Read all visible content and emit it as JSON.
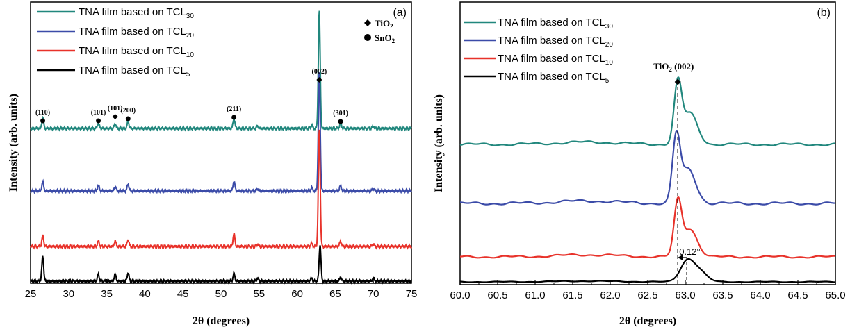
{
  "chart_data": [
    {
      "panel_label": "(a)",
      "type": "line",
      "xlabel": "2θ (degrees)",
      "ylabel": "Intensity (arb. units)",
      "xlim": [
        25,
        75
      ],
      "xticks": [
        "25",
        "30",
        "35",
        "40",
        "45",
        "50",
        "55",
        "60",
        "65",
        "70",
        "75"
      ],
      "legend_position": "top-left",
      "series": [
        {
          "name": "TNA film based on TCL",
          "sub": "30",
          "color": "#21877d",
          "offset": 3,
          "peaks": [
            [
              26.6,
              0.15
            ],
            [
              33.9,
              0.07
            ],
            [
              36.1,
              0.06
            ],
            [
              37.8,
              0.09
            ],
            [
              51.7,
              0.13
            ],
            [
              54.8,
              0.03
            ],
            [
              61.9,
              0.04
            ],
            [
              62.9,
              1.55
            ],
            [
              65.7,
              0.07
            ],
            [
              70.0,
              0.03
            ]
          ]
        },
        {
          "name": "TNA film based on TCL",
          "sub": "20",
          "color": "#3b4ba8",
          "offset": 2,
          "peaks": [
            [
              26.6,
              0.12
            ],
            [
              33.9,
              0.07
            ],
            [
              36.1,
              0.06
            ],
            [
              37.8,
              0.09
            ],
            [
              51.7,
              0.13
            ],
            [
              54.8,
              0.03
            ],
            [
              61.9,
              0.04
            ],
            [
              62.9,
              1.58
            ],
            [
              65.7,
              0.07
            ],
            [
              70.0,
              0.03
            ]
          ]
        },
        {
          "name": "TNA film based on TCL",
          "sub": "10",
          "color": "#e8322a",
          "offset": 1,
          "peaks": [
            [
              26.6,
              0.14
            ],
            [
              33.9,
              0.07
            ],
            [
              36.1,
              0.07
            ],
            [
              37.8,
              0.09
            ],
            [
              51.7,
              0.17
            ],
            [
              54.8,
              0.03
            ],
            [
              61.9,
              0.04
            ],
            [
              62.9,
              1.54
            ],
            [
              65.7,
              0.07
            ],
            [
              70.0,
              0.03
            ]
          ]
        },
        {
          "name": "TNA film based on TCL",
          "sub": "5",
          "color": "#000000",
          "offset": 0,
          "peaks": [
            [
              26.6,
              0.33
            ],
            [
              33.9,
              0.09
            ],
            [
              36.1,
              0.09
            ],
            [
              37.8,
              0.11
            ],
            [
              51.7,
              0.1
            ],
            [
              54.8,
              0.04
            ],
            [
              61.9,
              0.04
            ],
            [
              63.0,
              0.48
            ],
            [
              65.7,
              0.05
            ],
            [
              70.0,
              0.04
            ]
          ]
        }
      ],
      "peak_labels": [
        {
          "text": "(110)",
          "x": 26.6,
          "marker": "circle"
        },
        {
          "text": "(101)",
          "x": 33.9,
          "marker": "circle"
        },
        {
          "text": "(101)",
          "x": 36.1,
          "marker": "diamond"
        },
        {
          "text": "(200)",
          "x": 37.8,
          "marker": "circle"
        },
        {
          "text": "(211)",
          "x": 51.7,
          "marker": "circle"
        },
        {
          "text": "(002)",
          "x": 62.9,
          "marker": "diamond"
        },
        {
          "text": "(301)",
          "x": 65.7,
          "marker": "circle"
        }
      ],
      "marker_key": [
        {
          "marker": "diamond",
          "label": "TiO",
          "sub": "2"
        },
        {
          "marker": "circle",
          "label": "SnO",
          "sub": "2"
        }
      ]
    },
    {
      "panel_label": "(b)",
      "type": "line",
      "xlabel": "2θ (degrees)",
      "ylabel": "Intensity (arb. units)",
      "xlim": [
        60.0,
        65.0
      ],
      "xticks": [
        "60.0",
        "60.5",
        "61.0",
        "61.5",
        "62.0",
        "62.5",
        "63.0",
        "63.5",
        "64.0",
        "64.5",
        "65.0"
      ],
      "legend_position": "top-left",
      "series": [
        {
          "name": "TNA film based on TCL",
          "sub": "30",
          "color": "#21877d",
          "offset": 3,
          "peak_x": 62.9
        },
        {
          "name": "TNA film based on TCL",
          "sub": "20",
          "color": "#3b4ba8",
          "offset": 2,
          "peak_x": 62.88
        },
        {
          "name": "TNA film based on TCL",
          "sub": "10",
          "color": "#e8322a",
          "offset": 1,
          "peak_x": 62.9
        },
        {
          "name": "TNA film based on TCL",
          "sub": "5",
          "color": "#000000",
          "offset": 0,
          "peak_x": 63.02
        }
      ],
      "reference_line_x": 62.9,
      "annotation": {
        "label": "TiO",
        "sub": "2",
        "suffix": " (002)",
        "marker": "diamond"
      },
      "shift_label": "0.12°"
    }
  ]
}
